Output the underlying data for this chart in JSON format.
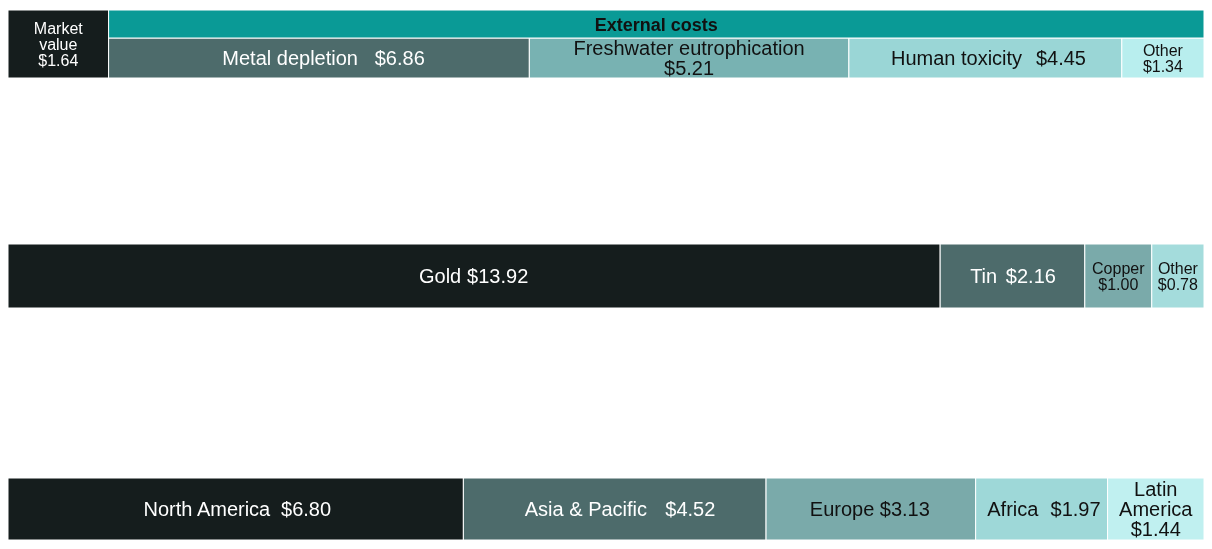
{
  "chart_data": {
    "type": "other",
    "annotations": [
      "External costs"
    ],
    "categories": [
      "Market value",
      "Metal depletion",
      "Freshwater eutrophication",
      "Human toxicity",
      "Other",
      "Gold",
      "Tin",
      "Copper",
      "Other",
      "North America",
      "Asia & Pacific",
      "Europe",
      "Africa",
      "Latin America"
    ],
    "series": [
      {
        "values": [
          1.64,
          6.86,
          5.21,
          4.45,
          1.34,
          null,
          null,
          null,
          null,
          null,
          null,
          null,
          null,
          null
        ],
        "value_labels": [
          "$1.64",
          "$6.86",
          "$5.21",
          "$4.45",
          "$1.34",
          null,
          null,
          null,
          null,
          null,
          null,
          null,
          null,
          null
        ],
        "colors": [
          "#151d1d",
          "#4d6b6b",
          "#78b2b2",
          "#9ad6d6",
          "#b8eeee",
          null,
          null,
          null,
          null,
          null,
          null,
          null,
          null,
          null
        ]
      },
      {
        "values": [
          null,
          null,
          null,
          null,
          null,
          13.92,
          2.16,
          1.0,
          0.78,
          null,
          null,
          null,
          null,
          null
        ],
        "value_labels": [
          null,
          null,
          null,
          null,
          null,
          "$13.92",
          "$2.16",
          "$1.00",
          "$0.78",
          null,
          null,
          null,
          null,
          null
        ],
        "colors": [
          null,
          null,
          null,
          null,
          null,
          "#151d1d",
          "#4d6b6b",
          "#7aaaaa",
          "#a4dcdc",
          null,
          null,
          null,
          null,
          null
        ]
      },
      {
        "values": [
          null,
          null,
          null,
          null,
          null,
          null,
          null,
          null,
          null,
          6.8,
          4.52,
          3.13,
          1.97,
          1.44
        ],
        "value_labels": [
          null,
          null,
          null,
          null,
          null,
          null,
          null,
          null,
          null,
          "$6.80",
          "$4.52",
          "$3.13",
          "$1.97",
          "$1.44"
        ],
        "colors": [
          null,
          null,
          null,
          null,
          null,
          null,
          null,
          null,
          null,
          "#151d1d",
          "#4d6b6b",
          "#7aaaaa",
          "#9ed8d8",
          "#c0f0f0"
        ]
      }
    ]
  }
}
